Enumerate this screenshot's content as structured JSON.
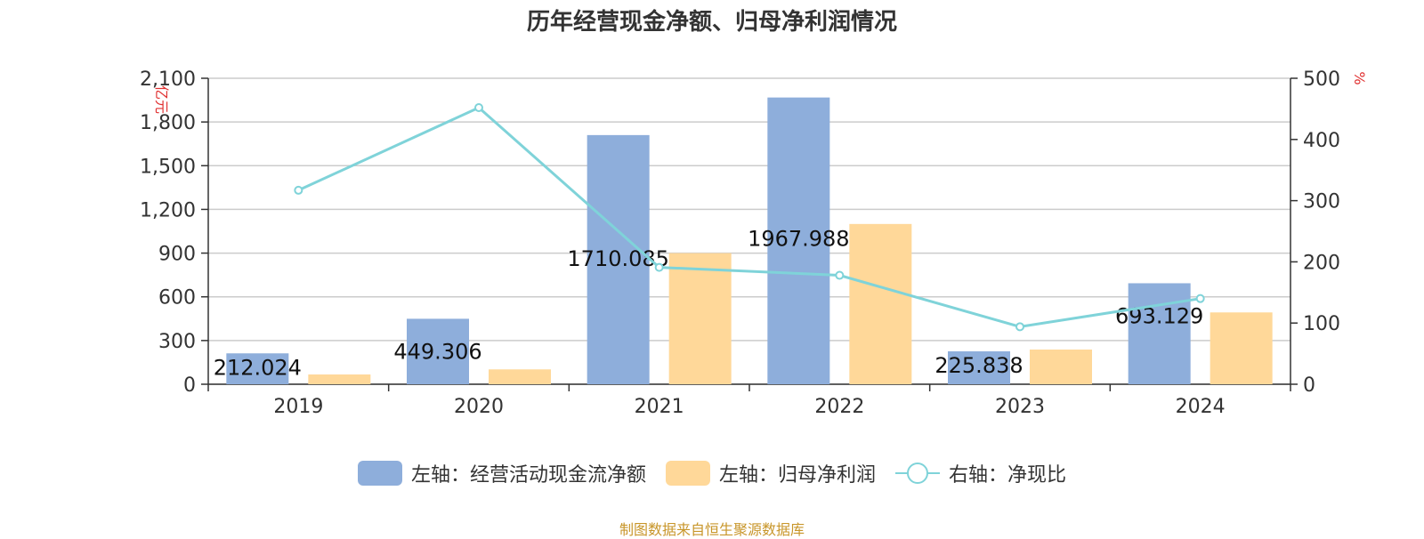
{
  "title": "历年经营现金净额、归母净利润情况",
  "source_note": "制图数据来自恒生聚源数据库",
  "chart_data": {
    "type": "bar",
    "categories": [
      "2019",
      "2020",
      "2021",
      "2022",
      "2023",
      "2024"
    ],
    "series": [
      {
        "name": "左轴：经营活动现金流净额",
        "axis": "left",
        "type": "bar",
        "color": "#8eaedb",
        "values": [
          212.024,
          449.306,
          1710.085,
          1967.988,
          225.838,
          693.129
        ],
        "labels": [
          "212.024",
          "449.306",
          "1710.085",
          "1967.988",
          "225.838",
          "693.129"
        ]
      },
      {
        "name": "左轴：归母净利润",
        "axis": "left",
        "type": "bar",
        "color": "#ffd899",
        "values": [
          67,
          102,
          900,
          1100,
          238,
          493
        ]
      },
      {
        "name": "右轴：净现比",
        "axis": "right",
        "type": "line",
        "color": "#7fd3d9",
        "values": [
          317,
          452,
          191,
          178,
          94,
          140
        ]
      }
    ],
    "left_axis": {
      "unit": "亿元",
      "ylim": [
        0,
        2100
      ],
      "ticks": [
        0,
        300,
        600,
        900,
        1200,
        1500,
        1800,
        2100
      ],
      "tick_labels": [
        "0",
        "300",
        "600",
        "900",
        "1,200",
        "1,500",
        "1,800",
        "2,100"
      ]
    },
    "right_axis": {
      "unit": "%",
      "ylim": [
        0,
        500
      ],
      "ticks": [
        0,
        100,
        200,
        300,
        400,
        500
      ],
      "tick_labels": [
        "0",
        "100",
        "200",
        "300",
        "400",
        "500"
      ]
    },
    "grid": true,
    "legend_position": "bottom"
  }
}
